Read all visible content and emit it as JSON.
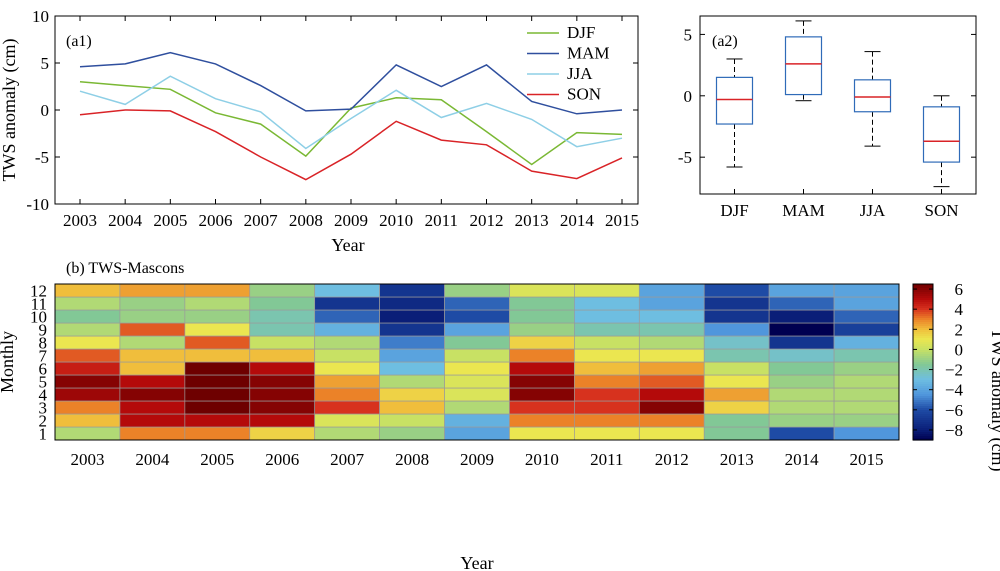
{
  "chart_data": [
    {
      "type": "line",
      "panel_label": "(a1)",
      "xlabel": "Year",
      "ylabel": "TWS anomaly (cm)",
      "x": [
        2003,
        2004,
        2005,
        2006,
        2007,
        2008,
        2009,
        2010,
        2011,
        2012,
        2013,
        2014,
        2015
      ],
      "ylim": [
        -10,
        10
      ],
      "yticks": [
        -10,
        -5,
        0,
        5,
        10
      ],
      "legend_position": "top-right",
      "series": [
        {
          "name": "DJF",
          "color": "#7ab834",
          "values": [
            3.0,
            2.6,
            2.2,
            -0.3,
            -1.5,
            -4.9,
            0.2,
            1.3,
            1.1,
            -2.3,
            -5.8,
            -2.4,
            -2.6
          ]
        },
        {
          "name": "MAM",
          "color": "#2f4f9e",
          "values": [
            4.6,
            4.9,
            6.1,
            4.9,
            2.6,
            -0.1,
            0.1,
            4.8,
            2.5,
            4.8,
            0.9,
            -0.4,
            0.0
          ]
        },
        {
          "name": "JJA",
          "color": "#8ecfe6",
          "values": [
            2.0,
            0.6,
            3.6,
            1.2,
            -0.2,
            -4.1,
            -0.9,
            2.1,
            -0.8,
            0.7,
            -1.0,
            -3.9,
            -3.0
          ]
        },
        {
          "name": "SON",
          "color": "#d92327",
          "values": [
            -0.5,
            0.0,
            -0.1,
            -2.3,
            -5.0,
            -7.4,
            -4.7,
            -1.2,
            -3.2,
            -3.7,
            -6.5,
            -7.3,
            -5.1
          ]
        }
      ]
    },
    {
      "type": "box",
      "panel_label": "(a2)",
      "categories": [
        "DJF",
        "MAM",
        "JJA",
        "SON"
      ],
      "ylim": [
        -8,
        6.5
      ],
      "yticks": [
        -5,
        0,
        5
      ],
      "box_color": "#2f6bb8",
      "median_color": "#d92327",
      "boxes": [
        {
          "name": "DJF",
          "min": -5.8,
          "q1": -2.3,
          "median": -0.3,
          "q3": 1.5,
          "max": 3.0
        },
        {
          "name": "MAM",
          "min": -0.4,
          "q1": 0.1,
          "median": 2.6,
          "q3": 4.8,
          "max": 6.1
        },
        {
          "name": "JJA",
          "min": -4.1,
          "q1": -1.3,
          "median": -0.1,
          "q3": 1.3,
          "max": 3.6
        },
        {
          "name": "SON",
          "min": -7.4,
          "q1": -5.4,
          "median": -3.7,
          "q3": -0.9,
          "max": 0.0
        }
      ]
    },
    {
      "type": "heatmap",
      "panel_label": "(b) TWS-Mascons",
      "xlabel": "Year",
      "ylabel": "Monthly",
      "colorbar_label": "TWS anomaly (cm)",
      "x": [
        "2003",
        "2004",
        "2005",
        "2006",
        "2007",
        "2008",
        "2009",
        "2010",
        "2011",
        "2012",
        "2013",
        "2014",
        "2015"
      ],
      "y": [
        "1",
        "2",
        "3",
        "4",
        "5",
        "6",
        "7",
        "8",
        "9",
        "10",
        "11",
        "12"
      ],
      "zlim": [
        -9,
        6.5
      ],
      "colorbar_ticks": [
        6,
        4,
        2,
        0,
        -2,
        -4,
        -6,
        -8
      ],
      "values": [
        [
          -0.5,
          3.0,
          3.0,
          1.5,
          -0.5,
          -1.0,
          -4.0,
          1.0,
          1.0,
          1.0,
          -1.5,
          -6.0,
          -4.5
        ],
        [
          2.0,
          5.0,
          5.0,
          5.0,
          0.5,
          0.0,
          -3.5,
          3.0,
          3.0,
          3.0,
          -1.5,
          -1.0,
          -1.0
        ],
        [
          3.0,
          5.0,
          6.5,
          6.0,
          4.0,
          2.0,
          -0.5,
          4.0,
          4.0,
          6.0,
          1.5,
          -0.5,
          -0.5
        ],
        [
          5.5,
          6.0,
          6.5,
          6.0,
          3.0,
          1.5,
          0.5,
          6.0,
          4.0,
          5.0,
          2.5,
          -0.5,
          -0.5
        ],
        [
          6.0,
          5.0,
          6.5,
          6.0,
          2.5,
          -0.5,
          0.5,
          6.0,
          3.0,
          3.5,
          1.0,
          -1.0,
          -0.5
        ],
        [
          4.5,
          2.0,
          6.5,
          5.0,
          1.0,
          -3.0,
          1.0,
          5.0,
          2.0,
          2.5,
          0.0,
          -1.5,
          -1.0
        ],
        [
          3.5,
          2.0,
          2.0,
          2.0,
          0.0,
          -4.0,
          0.0,
          3.0,
          1.0,
          1.0,
          -2.0,
          -2.5,
          -2.0
        ],
        [
          1.0,
          -0.5,
          3.5,
          0.0,
          -0.5,
          -5.0,
          -1.5,
          1.5,
          0.0,
          -0.5,
          -2.5,
          -7.0,
          -3.5
        ],
        [
          -0.5,
          3.5,
          1.0,
          -2.0,
          -3.5,
          -7.0,
          -4.0,
          -1.0,
          -2.0,
          -2.0,
          -4.5,
          -9.0,
          -6.5
        ],
        [
          -1.5,
          -1.0,
          -1.0,
          -2.0,
          -5.5,
          -8.0,
          -6.0,
          -1.5,
          -3.0,
          -3.0,
          -7.0,
          -8.0,
          -5.5
        ],
        [
          -0.5,
          -1.0,
          -0.5,
          -1.5,
          -7.0,
          -7.5,
          -5.5,
          -1.5,
          -3.0,
          -4.0,
          -7.0,
          -5.5,
          -4.0
        ],
        [
          2.0,
          2.5,
          2.5,
          -1.0,
          -3.0,
          -7.0,
          -1.0,
          0.5,
          0.5,
          -4.0,
          -6.0,
          -4.0,
          -4.0
        ]
      ]
    }
  ]
}
